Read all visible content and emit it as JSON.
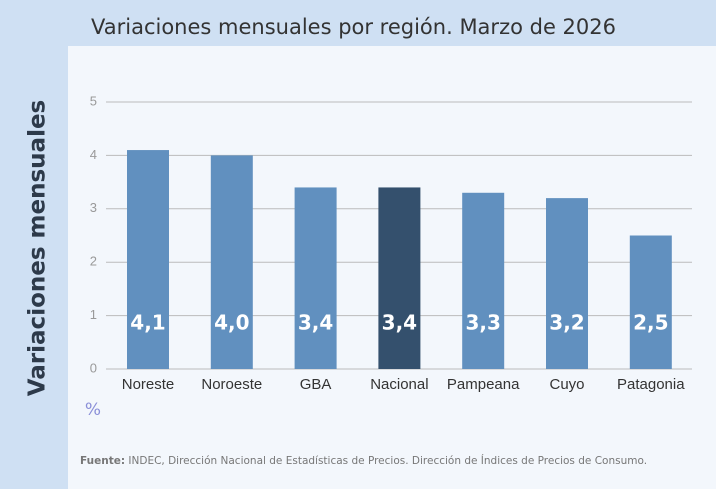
{
  "chart_data": {
    "type": "bar",
    "title": "Variaciones mensuales por región. Marzo de 2026",
    "y_label": "Variaciones mensuales",
    "unit": "%",
    "categories": [
      "Noreste",
      "Noroeste",
      "GBA",
      "Nacional",
      "Pampeana",
      "Cuyo",
      "Patagonia"
    ],
    "values": [
      4.1,
      4.0,
      3.4,
      3.4,
      3.3,
      3.2,
      2.5
    ],
    "value_labels": [
      "4,1",
      "4,0",
      "3,4",
      "3,4",
      "3,3",
      "3,2",
      "2,5"
    ],
    "colors": [
      "#6190bf",
      "#6190bf",
      "#6190bf",
      "#34506d",
      "#6190bf",
      "#6190bf",
      "#6190bf"
    ],
    "ylim": [
      0,
      5
    ],
    "yticks": [
      0,
      1,
      2,
      3,
      4,
      5
    ],
    "grid": true,
    "source_label": "Fuente:",
    "source": "INDEC, Dirección Nacional de Estadísticas de Precios. Dirección de Índices de Precios de Consumo."
  }
}
